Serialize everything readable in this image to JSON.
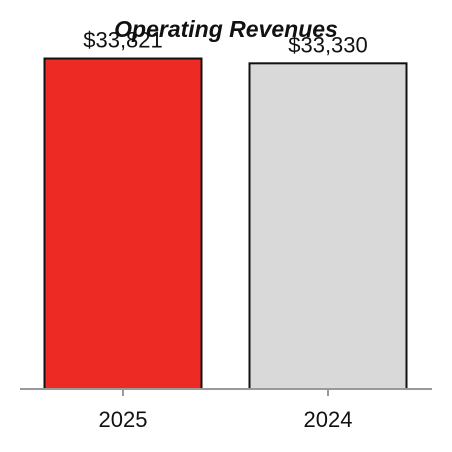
{
  "chart_data": {
    "type": "bar",
    "title": "Operating Revenues",
    "categories": [
      "2025",
      "2024"
    ],
    "values": [
      33821,
      33330
    ],
    "data_labels": [
      "$33,821",
      "$33,330"
    ],
    "bar_colors": [
      "#ee2a24",
      "#d9d9d9"
    ],
    "bar_outline_color": "#111111",
    "axis_color": "#999999",
    "xlabel": "",
    "ylabel": "",
    "ylim": [
      0,
      35000
    ],
    "grid": false,
    "legend": "none"
  }
}
